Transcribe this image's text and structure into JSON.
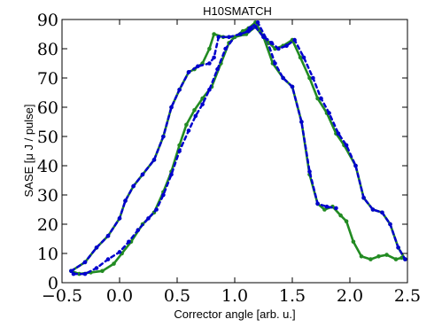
{
  "chart_data": {
    "type": "line",
    "title": "H10SMATCH",
    "xlabel": "Corrector angle [arb. u.]",
    "ylabel": "SASE [μ J / pulse]",
    "xlim": [
      -0.5,
      2.5
    ],
    "ylim": [
      0,
      90
    ],
    "xticks": [
      -0.5,
      0.0,
      0.5,
      1.0,
      1.5,
      2.0,
      2.5
    ],
    "xtick_labels": [
      "−0.5",
      "0.0",
      "0.5",
      "1.0",
      "1.5",
      "2.0",
      "2.5"
    ],
    "yticks": [
      0,
      10,
      20,
      30,
      40,
      50,
      60,
      70,
      80,
      90
    ],
    "ytick_labels": [
      "0",
      "10",
      "20",
      "30",
      "40",
      "50",
      "60",
      "70",
      "80",
      "90"
    ],
    "grid": false,
    "series": [
      {
        "color": "#228b22",
        "style": "solid",
        "values": [
          [
            -0.42,
            4
          ],
          [
            -0.35,
            3
          ],
          [
            -0.25,
            3.5
          ],
          [
            -0.15,
            4
          ],
          [
            -0.05,
            6.5
          ],
          [
            0.02,
            10
          ],
          [
            0.1,
            14
          ],
          [
            0.2,
            20
          ],
          [
            0.3,
            24
          ],
          [
            0.38,
            31
          ],
          [
            0.45,
            38
          ],
          [
            0.52,
            47
          ],
          [
            0.58,
            54
          ],
          [
            0.65,
            59
          ],
          [
            0.72,
            63
          ],
          [
            0.8,
            67
          ],
          [
            0.88,
            75
          ],
          [
            0.95,
            82
          ],
          [
            1.0,
            84
          ],
          [
            1.07,
            86
          ],
          [
            1.12,
            87
          ],
          [
            1.18,
            89
          ],
          [
            1.25,
            84
          ],
          [
            1.33,
            75
          ],
          [
            1.42,
            70
          ],
          [
            1.5,
            67
          ],
          [
            1.58,
            55
          ],
          [
            1.65,
            37
          ],
          [
            1.72,
            27
          ],
          [
            1.78,
            25
          ],
          [
            1.85,
            26
          ],
          [
            1.92,
            23
          ],
          [
            1.97,
            21
          ],
          [
            2.03,
            14
          ],
          [
            2.1,
            9
          ],
          [
            2.18,
            8
          ],
          [
            2.25,
            9
          ],
          [
            2.32,
            9.5
          ],
          [
            2.4,
            8
          ],
          [
            2.45,
            8.5
          ]
        ]
      },
      {
        "color": "#0000cd",
        "style": "dotted",
        "values": [
          [
            -0.4,
            3
          ],
          [
            -0.3,
            3
          ],
          [
            -0.2,
            5
          ],
          [
            -0.1,
            8
          ],
          [
            0.0,
            10.5
          ],
          [
            0.08,
            14
          ],
          [
            0.16,
            18
          ],
          [
            0.25,
            22
          ],
          [
            0.32,
            25
          ],
          [
            0.38,
            30
          ],
          [
            0.45,
            37
          ],
          [
            0.52,
            45
          ],
          [
            0.6,
            52
          ],
          [
            0.66,
            57
          ],
          [
            0.72,
            61
          ],
          [
            0.78,
            66
          ],
          [
            0.85,
            73
          ],
          [
            0.92,
            80
          ],
          [
            1.0,
            84
          ],
          [
            1.08,
            85
          ],
          [
            1.13,
            87
          ],
          [
            1.2,
            89
          ],
          [
            1.28,
            83
          ],
          [
            1.35,
            75
          ],
          [
            1.42,
            70
          ],
          [
            1.5,
            67
          ],
          [
            1.58,
            55
          ],
          [
            1.65,
            38
          ],
          [
            1.72,
            27
          ],
          [
            1.8,
            26
          ],
          [
            1.88,
            25.5
          ]
        ]
      },
      {
        "color": "#228b22",
        "style": "solid",
        "values": [
          [
            -0.42,
            4
          ],
          [
            -0.3,
            7
          ],
          [
            -0.2,
            12
          ],
          [
            -0.1,
            16
          ],
          [
            0.0,
            22
          ],
          [
            0.05,
            28
          ],
          [
            0.12,
            33
          ],
          [
            0.2,
            37
          ],
          [
            0.3,
            42
          ],
          [
            0.38,
            50
          ],
          [
            0.45,
            60
          ],
          [
            0.52,
            66
          ],
          [
            0.6,
            72
          ],
          [
            0.65,
            73
          ],
          [
            0.72,
            75
          ],
          [
            0.78,
            80
          ],
          [
            0.82,
            85
          ],
          [
            0.9,
            84
          ],
          [
            1.0,
            84
          ],
          [
            1.1,
            85
          ],
          [
            1.18,
            87.5
          ],
          [
            1.25,
            84
          ],
          [
            1.3,
            82
          ],
          [
            1.35,
            80
          ],
          [
            1.42,
            81
          ],
          [
            1.5,
            83
          ],
          [
            1.57,
            77
          ],
          [
            1.65,
            70
          ],
          [
            1.72,
            63
          ],
          [
            1.8,
            58
          ],
          [
            1.88,
            51
          ],
          [
            1.95,
            47
          ],
          [
            2.05,
            40
          ],
          [
            2.12,
            29
          ],
          [
            2.2,
            25
          ],
          [
            2.28,
            24
          ],
          [
            2.35,
            20
          ],
          [
            2.42,
            12
          ],
          [
            2.48,
            8
          ]
        ]
      },
      {
        "color": "#0000cd",
        "style": "dotted",
        "values": [
          [
            -0.42,
            4
          ],
          [
            -0.3,
            7
          ],
          [
            -0.2,
            12
          ],
          [
            -0.1,
            16
          ],
          [
            0.0,
            22
          ],
          [
            0.05,
            28
          ],
          [
            0.12,
            33
          ],
          [
            0.2,
            37
          ],
          [
            0.3,
            42
          ],
          [
            0.38,
            50
          ],
          [
            0.45,
            60
          ],
          [
            0.52,
            66
          ],
          [
            0.6,
            72
          ],
          [
            0.68,
            74
          ],
          [
            0.78,
            75
          ],
          [
            0.82,
            77
          ],
          [
            0.86,
            84
          ],
          [
            0.95,
            84
          ],
          [
            1.05,
            85
          ],
          [
            1.12,
            86
          ],
          [
            1.18,
            87.5
          ],
          [
            1.25,
            84
          ],
          [
            1.32,
            82
          ],
          [
            1.38,
            80
          ],
          [
            1.45,
            81
          ],
          [
            1.52,
            83
          ],
          [
            1.6,
            77
          ],
          [
            1.68,
            70
          ],
          [
            1.75,
            63
          ],
          [
            1.82,
            58
          ],
          [
            1.9,
            51
          ],
          [
            1.97,
            47
          ],
          [
            2.05,
            40
          ],
          [
            2.12,
            29
          ],
          [
            2.2,
            25
          ],
          [
            2.28,
            24
          ],
          [
            2.35,
            20
          ],
          [
            2.42,
            12
          ],
          [
            2.48,
            8
          ]
        ]
      }
    ]
  }
}
